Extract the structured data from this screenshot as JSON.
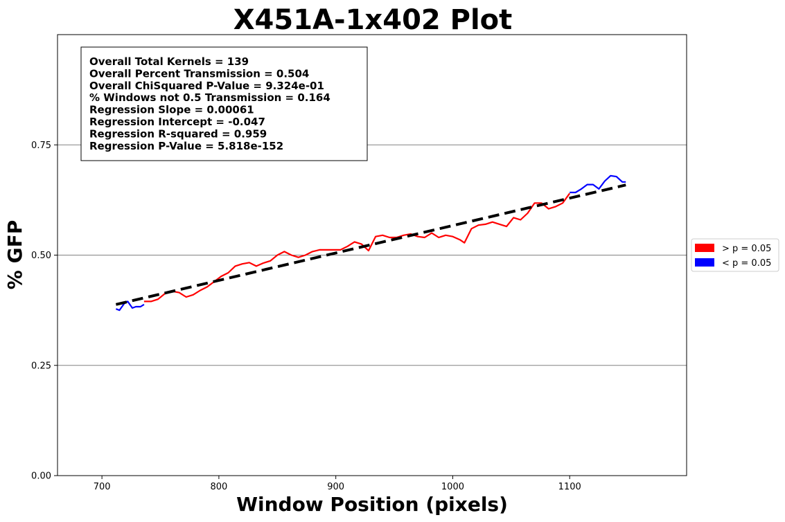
{
  "chart_data": {
    "type": "line",
    "title": "X451A-1x402 Plot",
    "xlabel": "Window Position (pixels)",
    "ylabel": "% GFP",
    "xlim": [
      662,
      1200
    ],
    "ylim": [
      0,
      1.0
    ],
    "xticks": [
      700,
      800,
      900,
      1000,
      1100
    ],
    "xtick_labels": [
      "700",
      "800",
      "900",
      "1000",
      "1100"
    ],
    "yticks": [
      0.0,
      0.25,
      0.5,
      0.75
    ],
    "ytick_labels": [
      "0.00",
      "0.25",
      "0.50",
      "0.75"
    ],
    "grid": "horizontal",
    "legend_placement": "outside-right",
    "legend": [
      {
        "label": "> p = 0.05",
        "color": "#ff0000"
      },
      {
        "label": "< p = 0.05",
        "color": "#0000ff"
      }
    ],
    "stats_box": [
      "Overall Total Kernels = 139",
      "Overall Percent Transmission = 0.504",
      "Overall ChiSquared P-Value = 9.324e-01",
      "% Windows not 0.5 Transmission = 0.164",
      "Regression Slope = 0.00061",
      "Regression Intercept = -0.047",
      "Regression R-squared = 0.959",
      "Regression P-Value = 5.818e-152"
    ],
    "regression_line": {
      "x": [
        712,
        1148
      ],
      "y": [
        0.388,
        0.659
      ],
      "color": "#000000",
      "style": "dashed"
    },
    "series": [
      {
        "name": "< p = 0.05",
        "color": "#0000ff",
        "segments": [
          {
            "x": [
              712,
              715,
              719,
              722,
              726,
              729,
              733,
              736
            ],
            "y": [
              0.378,
              0.375,
              0.39,
              0.395,
              0.38,
              0.383,
              0.383,
              0.388
            ]
          },
          {
            "x": [
              1100,
              1105,
              1110,
              1115,
              1120,
              1125,
              1130,
              1135,
              1140,
              1145,
              1148
            ],
            "y": [
              0.642,
              0.642,
              0.65,
              0.66,
              0.66,
              0.65,
              0.668,
              0.68,
              0.678,
              0.666,
              0.666
            ]
          }
        ]
      },
      {
        "name": "> p = 0.05",
        "color": "#ff0000",
        "segments": [
          {
            "x": [
              736,
              742,
              748,
              754,
              760,
              766,
              772,
              778,
              784,
              790,
              796,
              802,
              808,
              814,
              820,
              826,
              832,
              838,
              844,
              850,
              856,
              862,
              868,
              874,
              880,
              886,
              892,
              898,
              904,
              910,
              916,
              922,
              928,
              934,
              940,
              946,
              952,
              958,
              964,
              970,
              976,
              982,
              988,
              994,
              1000,
              1006,
              1010,
              1016,
              1022,
              1028,
              1034,
              1040,
              1046,
              1052,
              1058,
              1064,
              1070,
              1076,
              1082,
              1088,
              1094,
              1100
            ],
            "y": [
              0.395,
              0.395,
              0.4,
              0.413,
              0.418,
              0.415,
              0.405,
              0.41,
              0.42,
              0.428,
              0.44,
              0.452,
              0.46,
              0.475,
              0.48,
              0.483,
              0.475,
              0.482,
              0.487,
              0.5,
              0.508,
              0.5,
              0.495,
              0.5,
              0.508,
              0.512,
              0.512,
              0.512,
              0.512,
              0.52,
              0.53,
              0.525,
              0.51,
              0.542,
              0.545,
              0.54,
              0.54,
              0.545,
              0.548,
              0.542,
              0.54,
              0.55,
              0.54,
              0.545,
              0.542,
              0.535,
              0.528,
              0.56,
              0.568,
              0.57,
              0.575,
              0.57,
              0.565,
              0.585,
              0.58,
              0.595,
              0.618,
              0.618,
              0.605,
              0.61,
              0.618,
              0.64
            ]
          }
        ]
      }
    ]
  }
}
